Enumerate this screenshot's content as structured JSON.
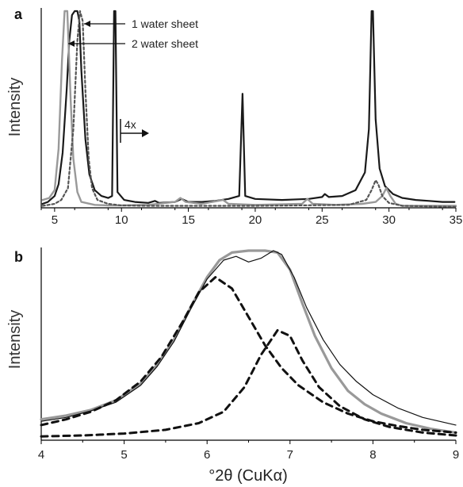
{
  "chart_data": [
    {
      "panel": "a",
      "type": "line",
      "xlim": [
        4,
        35
      ],
      "ylim": [
        0,
        1
      ],
      "x_ticks": [
        5,
        10,
        15,
        20,
        25,
        30,
        35
      ],
      "ylabel": "Intensity",
      "grid": false,
      "annotations": [
        {
          "text": "1 water sheet",
          "x": 7.1,
          "y": 0.94
        },
        {
          "text": "2 water sheet",
          "x": 6.1,
          "y": 0.83
        },
        {
          "text": "4x",
          "x": 10.5,
          "y": 0.35
        }
      ],
      "series": [
        {
          "color": "#1a1a1a",
          "style": "solid",
          "width": 2.2,
          "points": [
            [
              4.1,
              0.02
            ],
            [
              4.5,
              0.03
            ],
            [
              5,
              0.06
            ],
            [
              5.3,
              0.12
            ],
            [
              5.6,
              0.28
            ],
            [
              5.9,
              0.6
            ],
            [
              6.1,
              0.85
            ],
            [
              6.3,
              0.98
            ],
            [
              6.5,
              1.0
            ],
            [
              6.7,
              1.0
            ],
            [
              6.85,
              0.95
            ],
            [
              7.0,
              0.7
            ],
            [
              7.3,
              0.35
            ],
            [
              7.6,
              0.17
            ],
            [
              8,
              0.09
            ],
            [
              8.5,
              0.06
            ],
            [
              9,
              0.05
            ],
            [
              9.3,
              0.06
            ],
            [
              9.45,
              1.0
            ],
            [
              9.55,
              1.0
            ],
            [
              9.7,
              0.08
            ],
            [
              10.2,
              0.04
            ],
            [
              11,
              0.03
            ],
            [
              12,
              0.025
            ],
            [
              12.5,
              0.035
            ],
            [
              12.8,
              0.025
            ],
            [
              14,
              0.03
            ],
            [
              14.5,
              0.045
            ],
            [
              15,
              0.03
            ],
            [
              16,
              0.03
            ],
            [
              17,
              0.035
            ],
            [
              18,
              0.045
            ],
            [
              18.8,
              0.06
            ],
            [
              19.05,
              0.58
            ],
            [
              19.25,
              0.06
            ],
            [
              20,
              0.045
            ],
            [
              22,
              0.04
            ],
            [
              24,
              0.045
            ],
            [
              25,
              0.055
            ],
            [
              25.2,
              0.07
            ],
            [
              25.5,
              0.055
            ],
            [
              26.5,
              0.06
            ],
            [
              27.5,
              0.09
            ],
            [
              28.2,
              0.18
            ],
            [
              28.5,
              0.4
            ],
            [
              28.7,
              1.0
            ],
            [
              28.8,
              1.0
            ],
            [
              29,
              0.45
            ],
            [
              29.3,
              0.2
            ],
            [
              29.7,
              0.11
            ],
            [
              30.3,
              0.07
            ],
            [
              31,
              0.05
            ],
            [
              32,
              0.04
            ],
            [
              33,
              0.035
            ],
            [
              34,
              0.03
            ],
            [
              34.9,
              0.03
            ]
          ]
        },
        {
          "color": "#999999",
          "style": "solid",
          "width": 2.4,
          "points": [
            [
              4.1,
              0.04
            ],
            [
              4.6,
              0.05
            ],
            [
              5,
              0.09
            ],
            [
              5.3,
              0.3
            ],
            [
              5.55,
              0.75
            ],
            [
              5.75,
              1.0
            ],
            [
              5.95,
              1.0
            ],
            [
              6.2,
              0.55
            ],
            [
              6.4,
              0.25
            ],
            [
              6.7,
              0.08
            ],
            [
              7,
              0.03
            ],
            [
              8,
              0.015
            ],
            [
              9,
              0.012
            ],
            [
              10,
              0.012
            ],
            [
              12,
              0.015
            ],
            [
              14,
              0.03
            ],
            [
              14.4,
              0.05
            ],
            [
              14.8,
              0.03
            ],
            [
              16,
              0.02
            ],
            [
              17.6,
              0.04
            ],
            [
              18,
              0.02
            ],
            [
              20,
              0.015
            ],
            [
              23.5,
              0.02
            ],
            [
              23.9,
              0.045
            ],
            [
              24.3,
              0.02
            ],
            [
              26,
              0.015
            ],
            [
              28,
              0.02
            ],
            [
              29,
              0.03
            ],
            [
              29.5,
              0.06
            ],
            [
              29.8,
              0.1
            ],
            [
              30.1,
              0.06
            ],
            [
              30.5,
              0.02
            ],
            [
              31,
              0.01
            ],
            [
              35,
              0.01
            ]
          ]
        },
        {
          "color": "#555555",
          "style": "dashed",
          "width": 2.2,
          "points": [
            [
              4.1,
              0.01
            ],
            [
              5,
              0.02
            ],
            [
              5.5,
              0.04
            ],
            [
              6,
              0.1
            ],
            [
              6.4,
              0.4
            ],
            [
              6.7,
              0.85
            ],
            [
              6.9,
              1.0
            ],
            [
              7.1,
              0.95
            ],
            [
              7.3,
              0.6
            ],
            [
              7.55,
              0.25
            ],
            [
              7.8,
              0.1
            ],
            [
              8.2,
              0.04
            ],
            [
              9,
              0.02
            ],
            [
              10,
              0.012
            ],
            [
              12,
              0.01
            ],
            [
              20,
              0.01
            ],
            [
              27,
              0.015
            ],
            [
              28.3,
              0.04
            ],
            [
              28.7,
              0.09
            ],
            [
              29.0,
              0.14
            ],
            [
              29.2,
              0.12
            ],
            [
              29.5,
              0.06
            ],
            [
              30,
              0.025
            ],
            [
              31,
              0.01
            ],
            [
              35,
              0.005
            ]
          ]
        }
      ]
    },
    {
      "panel": "b",
      "type": "line",
      "xlim": [
        4,
        9
      ],
      "ylim": [
        0,
        1
      ],
      "x_ticks": [
        4,
        5,
        6,
        7,
        8,
        9
      ],
      "ylabel": "Intensity",
      "xlabel": "°2θ (CuKα)",
      "grid": false,
      "series": [
        {
          "color": "#999999",
          "style": "solid",
          "width": 3.2,
          "points": [
            [
              4,
              0.11
            ],
            [
              4.3,
              0.13
            ],
            [
              4.6,
              0.16
            ],
            [
              4.9,
              0.21
            ],
            [
              5.2,
              0.3
            ],
            [
              5.4,
              0.4
            ],
            [
              5.6,
              0.53
            ],
            [
              5.8,
              0.7
            ],
            [
              6.0,
              0.86
            ],
            [
              6.15,
              0.95
            ],
            [
              6.3,
              0.99
            ],
            [
              6.5,
              1.0
            ],
            [
              6.7,
              1.0
            ],
            [
              6.85,
              0.99
            ],
            [
              7.0,
              0.9
            ],
            [
              7.15,
              0.72
            ],
            [
              7.3,
              0.55
            ],
            [
              7.5,
              0.38
            ],
            [
              7.7,
              0.26
            ],
            [
              7.9,
              0.19
            ],
            [
              8.1,
              0.14
            ],
            [
              8.4,
              0.09
            ],
            [
              8.7,
              0.06
            ],
            [
              9,
              0.04
            ]
          ]
        },
        {
          "color": "#111111",
          "style": "solid",
          "width": 1.2,
          "points": [
            [
              4,
              0.1
            ],
            [
              4.3,
              0.12
            ],
            [
              4.6,
              0.155
            ],
            [
              4.9,
              0.2
            ],
            [
              5.2,
              0.29
            ],
            [
              5.4,
              0.39
            ],
            [
              5.6,
              0.52
            ],
            [
              5.8,
              0.69
            ],
            [
              6.0,
              0.85
            ],
            [
              6.2,
              0.95
            ],
            [
              6.35,
              0.97
            ],
            [
              6.5,
              0.94
            ],
            [
              6.65,
              0.96
            ],
            [
              6.8,
              1.0
            ],
            [
              6.9,
              0.98
            ],
            [
              7.05,
              0.86
            ],
            [
              7.2,
              0.7
            ],
            [
              7.4,
              0.53
            ],
            [
              7.6,
              0.4
            ],
            [
              7.8,
              0.31
            ],
            [
              8.0,
              0.24
            ],
            [
              8.3,
              0.17
            ],
            [
              8.6,
              0.12
            ],
            [
              9,
              0.08
            ]
          ]
        },
        {
          "color": "#111111",
          "style": "dashed",
          "width": 3.0,
          "points": [
            [
              4,
              0.08
            ],
            [
              4.3,
              0.11
            ],
            [
              4.6,
              0.15
            ],
            [
              4.9,
              0.21
            ],
            [
              5.2,
              0.31
            ],
            [
              5.45,
              0.44
            ],
            [
              5.7,
              0.62
            ],
            [
              5.9,
              0.78
            ],
            [
              6.1,
              0.86
            ],
            [
              6.3,
              0.8
            ],
            [
              6.5,
              0.65
            ],
            [
              6.7,
              0.5
            ],
            [
              6.9,
              0.38
            ],
            [
              7.1,
              0.29
            ],
            [
              7.4,
              0.2
            ],
            [
              7.7,
              0.14
            ],
            [
              8,
              0.1
            ],
            [
              8.3,
              0.075
            ],
            [
              8.6,
              0.055
            ],
            [
              9,
              0.04
            ]
          ]
        },
        {
          "color": "#111111",
          "style": "dashed",
          "width": 3.0,
          "points": [
            [
              4,
              0.02
            ],
            [
              4.5,
              0.025
            ],
            [
              5,
              0.035
            ],
            [
              5.5,
              0.055
            ],
            [
              5.9,
              0.09
            ],
            [
              6.2,
              0.15
            ],
            [
              6.45,
              0.28
            ],
            [
              6.65,
              0.45
            ],
            [
              6.85,
              0.58
            ],
            [
              7.0,
              0.55
            ],
            [
              7.15,
              0.42
            ],
            [
              7.35,
              0.28
            ],
            [
              7.6,
              0.18
            ],
            [
              7.9,
              0.11
            ],
            [
              8.2,
              0.07
            ],
            [
              8.6,
              0.04
            ],
            [
              9,
              0.025
            ]
          ]
        }
      ]
    }
  ],
  "labels": {
    "panel_a": "a",
    "panel_b": "b"
  }
}
